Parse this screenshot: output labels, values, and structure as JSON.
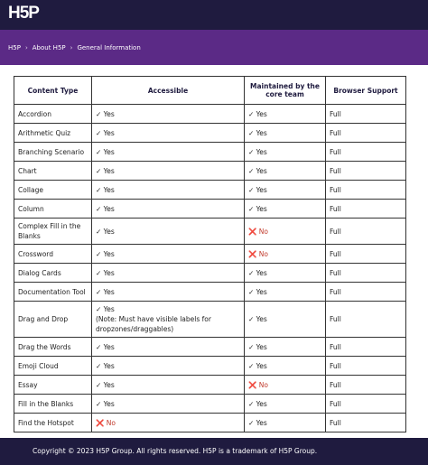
{
  "header": {
    "logo": "H5P",
    "breadcrumbs": [
      "H5P",
      "About H5P",
      "General Information"
    ]
  },
  "table": {
    "headers": [
      "Content Type",
      "Accessible",
      "Maintained by the core team",
      "Browser Support"
    ],
    "rows": [
      [
        "Accordion",
        "✓ Yes",
        "✓ Yes",
        "Full"
      ],
      [
        "Arithmetic Quiz",
        "✓ Yes",
        "✓ Yes",
        "Full"
      ],
      [
        "Branching Scenario",
        "✓ Yes",
        "✓ Yes",
        "Full"
      ],
      [
        "Chart",
        "✓ Yes",
        "✓ Yes",
        "Full"
      ],
      [
        "Collage",
        "✓ Yes",
        "✓ Yes",
        "Full"
      ],
      [
        "Column",
        "✓ Yes",
        "✓ Yes",
        "Full"
      ],
      [
        "Complex Fill in the Blanks",
        "✓ Yes",
        "❌ No",
        "Full"
      ],
      [
        "Crossword",
        "✓ Yes",
        "❌ No",
        "Full"
      ],
      [
        "Dialog Cards",
        "✓ Yes",
        "✓ Yes",
        "Full"
      ],
      [
        "Documentation Tool",
        "✓ Yes",
        "✓ Yes",
        "Full"
      ],
      [
        "Drag and Drop",
        "✓ Yes\n(Note: Must have visible labels for dropzones/draggables)",
        "✓ Yes",
        "Full"
      ],
      [
        "Drag the Words",
        "✓ Yes",
        "✓ Yes",
        "Full"
      ],
      [
        "Emoji Cloud",
        "✓ Yes",
        "✓ Yes",
        "Full"
      ],
      [
        "Essay",
        "✓ Yes",
        "❌ No",
        "Full"
      ],
      [
        "Fill in the Blanks",
        "✓ Yes",
        "✓ Yes",
        "Full"
      ],
      [
        "Find the Hotspot",
        "❌ No",
        "✓ Yes",
        "Full"
      ]
    ]
  },
  "footer": {
    "text": "Copyright © 2023 H5P Group. All rights reserved. H5P is a trademark of H5P Group."
  }
}
